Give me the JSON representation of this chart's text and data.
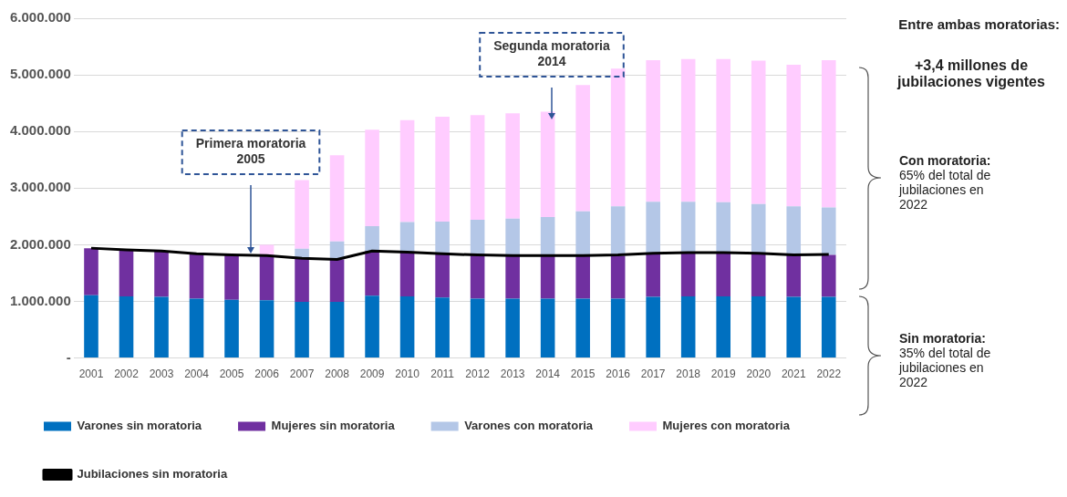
{
  "chart_data": {
    "type": "bar",
    "stacked": true,
    "categories": [
      "2001",
      "2002",
      "2003",
      "2004",
      "2005",
      "2006",
      "2007",
      "2008",
      "2009",
      "2010",
      "2011",
      "2012",
      "2013",
      "2014",
      "2015",
      "2016",
      "2017",
      "2018",
      "2019",
      "2020",
      "2021",
      "2022"
    ],
    "series": [
      {
        "name": "Varones sin moratoria",
        "color": "#0070c0",
        "values": [
          1110000,
          1090000,
          1080000,
          1050000,
          1030000,
          1020000,
          990000,
          990000,
          1100000,
          1090000,
          1070000,
          1050000,
          1050000,
          1050000,
          1050000,
          1050000,
          1080000,
          1090000,
          1090000,
          1090000,
          1080000,
          1080000
        ]
      },
      {
        "name": "Mujeres sin moratoria",
        "color": "#7030a0",
        "values": [
          830000,
          820000,
          810000,
          790000,
          790000,
          780000,
          770000,
          750000,
          790000,
          770000,
          760000,
          770000,
          750000,
          750000,
          750000,
          750000,
          750000,
          760000,
          760000,
          750000,
          740000,
          740000
        ]
      },
      {
        "name": "Varones con moratoria",
        "color": "#b4c7e7",
        "values": [
          0,
          0,
          0,
          0,
          0,
          0,
          170000,
          320000,
          440000,
          540000,
          580000,
          620000,
          660000,
          690000,
          790000,
          880000,
          930000,
          910000,
          900000,
          880000,
          860000,
          840000
        ]
      },
      {
        "name": "Mujeres con moratoria",
        "color": "#ffccff",
        "values": [
          0,
          0,
          0,
          0,
          0,
          200000,
          1210000,
          1520000,
          1700000,
          1800000,
          1850000,
          1850000,
          1860000,
          1860000,
          2230000,
          2430000,
          2500000,
          2520000,
          2530000,
          2530000,
          2500000,
          2600000
        ]
      },
      {
        "name": "Jubilaciones sin moratoria",
        "type": "line",
        "color": "#000000",
        "values": [
          1940000,
          1910000,
          1890000,
          1840000,
          1820000,
          1810000,
          1760000,
          1740000,
          1890000,
          1870000,
          1840000,
          1820000,
          1810000,
          1810000,
          1810000,
          1820000,
          1850000,
          1860000,
          1860000,
          1850000,
          1820000,
          1830000
        ]
      }
    ],
    "ylim": [
      0,
      6000000
    ],
    "yticks": [
      {
        "value": 0,
        "label": "-"
      },
      {
        "value": 1000000,
        "label": "1.000.000"
      },
      {
        "value": 2000000,
        "label": "2.000.000"
      },
      {
        "value": 3000000,
        "label": "3.000.000"
      },
      {
        "value": 4000000,
        "label": "4.000.000"
      },
      {
        "value": 5000000,
        "label": "5.000.000"
      },
      {
        "value": 6000000,
        "label": "6.000.000"
      }
    ],
    "grid": "y",
    "legend": "bottom",
    "marker": "none",
    "annotations": [
      "Primera moratoria\n2005",
      "Segunda moratoria\n2014",
      "Entre ambas moratorias:",
      "+3,4 millones de jubilaciones vigentes",
      "Con moratoria: 65% del total de jubilaciones en 2022",
      "Sin moratoria: 35% del total de jubilaciones en 2022"
    ]
  }
}
